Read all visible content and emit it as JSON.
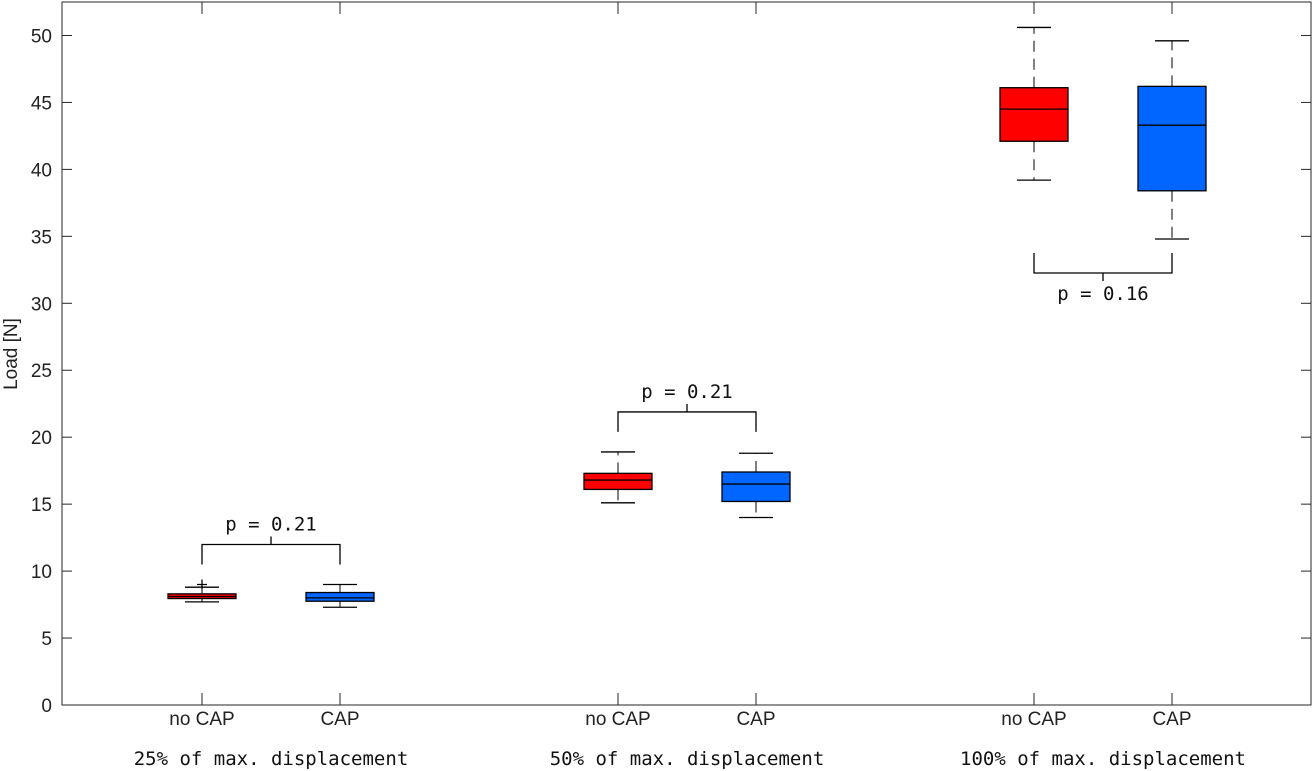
{
  "chart_data": {
    "type": "box",
    "ylabel": "Load [N]",
    "ylim": [
      0,
      52.5
    ],
    "yticks": [
      0,
      5,
      10,
      15,
      20,
      25,
      30,
      35,
      40,
      45,
      50
    ],
    "grid": false,
    "groups": [
      {
        "label": "25% of max. displacement",
        "p_value_label": "p = 0.21",
        "boxes": [
          {
            "category": "no CAP",
            "color": "#ff0000",
            "whisker_low": 7.7,
            "q1": 7.95,
            "median": 8.1,
            "q3": 8.3,
            "whisker_high": 8.8,
            "outliers": [
              9.0
            ]
          },
          {
            "category": "CAP",
            "color": "#0066ff",
            "whisker_low": 7.3,
            "q1": 7.75,
            "median": 8.0,
            "q3": 8.4,
            "whisker_high": 9.0,
            "outliers": []
          }
        ]
      },
      {
        "label": "50% of max. displacement",
        "p_value_label": "p = 0.21",
        "boxes": [
          {
            "category": "no CAP",
            "color": "#ff0000",
            "whisker_low": 15.1,
            "q1": 16.1,
            "median": 16.8,
            "q3": 17.3,
            "whisker_high": 18.9,
            "outliers": []
          },
          {
            "category": "CAP",
            "color": "#0066ff",
            "whisker_low": 14.0,
            "q1": 15.2,
            "median": 16.5,
            "q3": 17.4,
            "whisker_high": 18.8,
            "outliers": []
          }
        ]
      },
      {
        "label": "100% of max. displacement",
        "p_value_label": "p = 0.16",
        "boxes": [
          {
            "category": "no CAP",
            "color": "#ff0000",
            "whisker_low": 39.2,
            "q1": 42.1,
            "median": 44.5,
            "q3": 46.1,
            "whisker_high": 50.6,
            "outliers": []
          },
          {
            "category": "CAP",
            "color": "#0066ff",
            "whisker_low": 34.8,
            "q1": 38.4,
            "median": 43.3,
            "q3": 46.2,
            "whisker_high": 49.6,
            "outliers": []
          }
        ]
      }
    ]
  }
}
